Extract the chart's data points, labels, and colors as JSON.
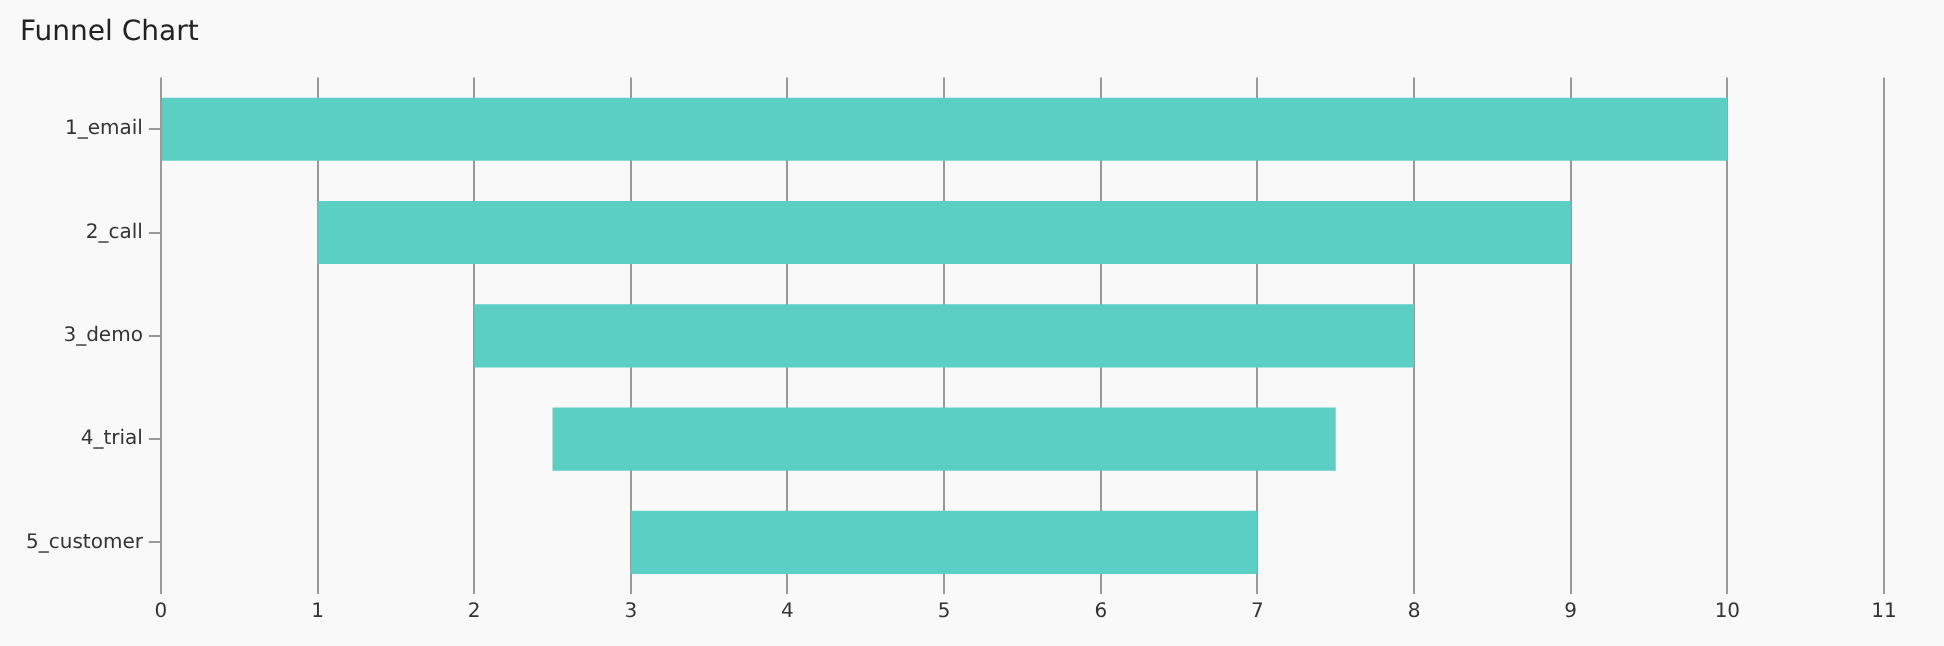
{
  "chart_data": {
    "type": "bar",
    "title": "Funnel Chart",
    "orientation": "horizontal",
    "categories": [
      "1_email",
      "2_call",
      "3_demo",
      "4_trial",
      "5_customer"
    ],
    "values": [
      10,
      8,
      6,
      5,
      4
    ],
    "base": [
      0,
      1,
      2,
      2.5,
      3
    ],
    "color": "#5ccfc5",
    "xlim": [
      0,
      11
    ],
    "xticks": [
      0,
      1,
      2,
      3,
      4,
      5,
      6,
      7,
      8,
      9,
      10,
      11
    ],
    "grid": "x",
    "legend": false
  }
}
